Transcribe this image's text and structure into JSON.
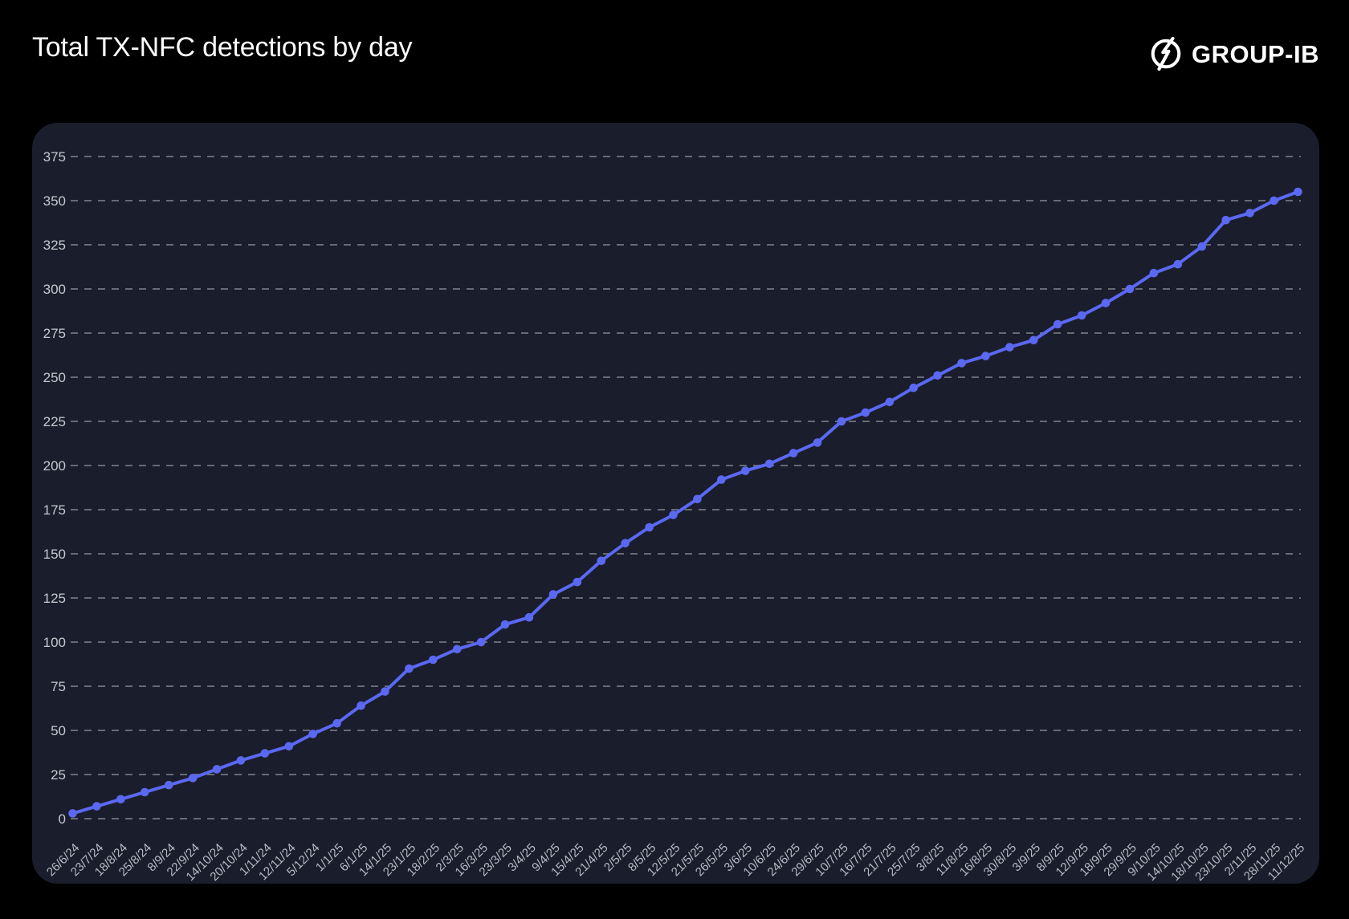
{
  "header": {
    "title": "Total TX-NFC detections by day",
    "logo_text": "GROUP-IB"
  },
  "chart_data": {
    "type": "line",
    "title": "Total TX-NFC detections by day",
    "x": [
      "26/6/24",
      "23/7/24",
      "18/8/24",
      "25/8/24",
      "8/9/24",
      "22/9/24",
      "14/10/24",
      "20/10/24",
      "1/11/24",
      "12/11/24",
      "5/12/24",
      "1/1/25",
      "6/1/25",
      "14/1/25",
      "23/1/25",
      "18/2/25",
      "2/3/25",
      "16/3/25",
      "23/3/25",
      "3/4/25",
      "9/4/25",
      "15/4/25",
      "21/4/25",
      "2/5/25",
      "8/5/25",
      "12/5/25",
      "21/5/25",
      "26/5/25",
      "3/6/25",
      "10/6/25",
      "24/6/25",
      "29/6/25",
      "10/7/25",
      "16/7/25",
      "21/7/25",
      "25/7/25",
      "3/8/25",
      "11/8/25",
      "16/8/25",
      "30/8/25",
      "3/9/25",
      "8/9/25",
      "12/9/25",
      "18/9/25",
      "29/9/25",
      "9/10/25",
      "14/10/25",
      "18/10/25",
      "23/10/25",
      "2/11/25",
      "28/11/25",
      "11/12/25"
    ],
    "series": [
      {
        "name": "Total TX-NFC detections",
        "values": [
          3,
          7,
          11,
          15,
          19,
          23,
          28,
          33,
          37,
          41,
          48,
          54,
          64,
          72,
          85,
          90,
          96,
          100,
          110,
          114,
          127,
          134,
          146,
          156,
          165,
          172,
          181,
          192,
          197,
          201,
          207,
          213,
          225,
          230,
          236,
          244,
          251,
          258,
          262,
          267,
          271,
          280,
          285,
          292,
          300,
          309,
          314,
          324,
          339,
          343,
          350,
          355
        ]
      }
    ],
    "ylim": [
      0,
      375
    ],
    "ytick_step": 25,
    "grid": "horizontal-dashed",
    "legend": "none",
    "marker": "circle"
  },
  "colors": {
    "accent_line": "#5b68f2",
    "page_background": "#000000",
    "panel_background": "#1a1d2b",
    "gridline": "#666b76",
    "y_tick_label": "#c6c9d1",
    "x_tick_label": "#b8bbc4",
    "title": "#ffffff",
    "logo": "#ffffff"
  }
}
